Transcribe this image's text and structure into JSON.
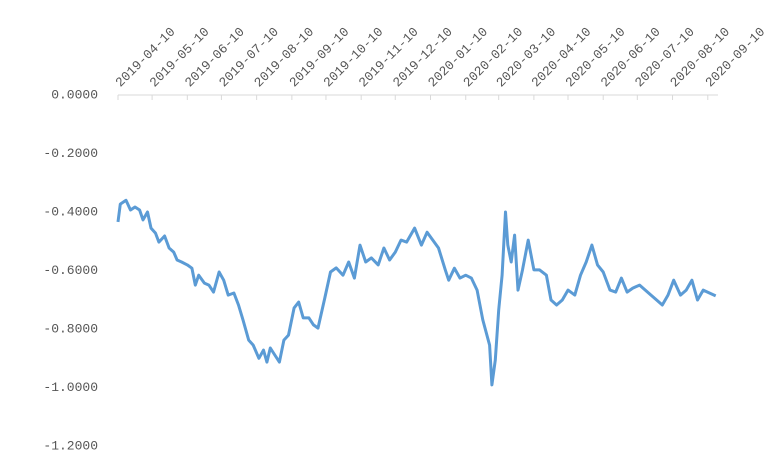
{
  "chart_data": {
    "type": "line",
    "x": [
      "2019-04-10",
      "2019-04-12",
      "2019-04-17",
      "2019-04-21",
      "2019-04-25",
      "2019-04-29",
      "2019-05-02",
      "2019-05-06",
      "2019-05-09",
      "2019-05-13",
      "2019-05-16",
      "2019-05-21",
      "2019-05-25",
      "2019-05-29",
      "2019-06-01",
      "2019-06-05",
      "2019-06-10",
      "2019-06-14",
      "2019-06-17",
      "2019-06-20",
      "2019-06-25",
      "2019-06-29",
      "2019-07-03",
      "2019-07-08",
      "2019-07-12",
      "2019-07-16",
      "2019-07-21",
      "2019-07-25",
      "2019-07-29",
      "2019-08-03",
      "2019-08-07",
      "2019-08-12",
      "2019-08-16",
      "2019-08-19",
      "2019-08-22",
      "2019-08-26",
      "2019-08-30",
      "2019-09-03",
      "2019-09-07",
      "2019-09-12",
      "2019-09-16",
      "2019-09-20",
      "2019-09-25",
      "2019-09-29",
      "2019-10-03",
      "2019-10-09",
      "2019-10-14",
      "2019-10-19",
      "2019-10-25",
      "2019-10-30",
      "2019-11-04",
      "2019-11-09",
      "2019-11-14",
      "2019-11-19",
      "2019-11-25",
      "2019-11-30",
      "2019-12-05",
      "2019-12-10",
      "2019-12-15",
      "2019-12-20",
      "2019-12-27",
      "2020-01-02",
      "2020-01-07",
      "2020-01-12",
      "2020-01-17",
      "2020-01-23",
      "2020-01-26",
      "2020-01-31",
      "2020-02-05",
      "2020-02-10",
      "2020-02-15",
      "2020-02-20",
      "2020-02-25",
      "2020-03-02",
      "2020-03-04",
      "2020-03-07",
      "2020-03-10",
      "2020-03-13",
      "2020-03-16",
      "2020-03-18",
      "2020-03-21",
      "2020-03-24",
      "2020-03-27",
      "2020-03-31",
      "2020-04-05",
      "2020-04-10",
      "2020-04-15",
      "2020-04-21",
      "2020-04-25",
      "2020-04-30",
      "2020-05-05",
      "2020-05-10",
      "2020-05-16",
      "2020-05-21",
      "2020-05-26",
      "2020-05-31",
      "2020-06-05",
      "2020-06-10",
      "2020-06-16",
      "2020-06-21",
      "2020-06-26",
      "2020-07-01",
      "2020-07-06",
      "2020-07-12",
      "2020-07-17",
      "2020-07-22",
      "2020-07-27",
      "2020-08-01",
      "2020-08-06",
      "2020-08-11",
      "2020-08-17",
      "2020-08-22",
      "2020-08-27",
      "2020-09-01",
      "2020-09-06",
      "2020-09-17"
    ],
    "series": [
      {
        "color": "#5b9bd5",
        "values": [
          -0.434,
          -0.373,
          -0.36,
          -0.393,
          -0.383,
          -0.393,
          -0.427,
          -0.4,
          -0.455,
          -0.472,
          -0.503,
          -0.482,
          -0.523,
          -0.537,
          -0.564,
          -0.571,
          -0.581,
          -0.592,
          -0.65,
          -0.616,
          -0.643,
          -0.65,
          -0.674,
          -0.605,
          -0.633,
          -0.684,
          -0.677,
          -0.718,
          -0.769,
          -0.838,
          -0.855,
          -0.9,
          -0.872,
          -0.913,
          -0.865,
          -0.889,
          -0.913,
          -0.838,
          -0.821,
          -0.728,
          -0.708,
          -0.762,
          -0.762,
          -0.786,
          -0.797,
          -0.694,
          -0.605,
          -0.591,
          -0.616,
          -0.571,
          -0.626,
          -0.513,
          -0.571,
          -0.557,
          -0.581,
          -0.523,
          -0.564,
          -0.537,
          -0.496,
          -0.503,
          -0.455,
          -0.513,
          -0.469,
          -0.496,
          -0.523,
          -0.598,
          -0.633,
          -0.592,
          -0.626,
          -0.616,
          -0.626,
          -0.667,
          -0.769,
          -0.855,
          -0.991,
          -0.906,
          -0.735,
          -0.616,
          -0.4,
          -0.513,
          -0.571,
          -0.479,
          -0.667,
          -0.598,
          -0.496,
          -0.598,
          -0.598,
          -0.616,
          -0.701,
          -0.718,
          -0.701,
          -0.667,
          -0.684,
          -0.616,
          -0.571,
          -0.513,
          -0.581,
          -0.605,
          -0.667,
          -0.674,
          -0.626,
          -0.674,
          -0.66,
          -0.65,
          -0.667,
          -0.684,
          -0.701,
          -0.718,
          -0.684,
          -0.633,
          -0.684,
          -0.667,
          -0.633,
          -0.701,
          -0.667,
          -0.687
        ]
      }
    ],
    "xlim": [
      "2019-04-10",
      "2020-09-19"
    ],
    "xticks": [
      "2019-04-10",
      "2019-05-10",
      "2019-06-10",
      "2019-07-10",
      "2019-08-10",
      "2019-09-10",
      "2019-10-10",
      "2019-11-10",
      "2019-12-10",
      "2020-01-10",
      "2020-02-10",
      "2020-03-10",
      "2020-04-10",
      "2020-05-10",
      "2020-06-10",
      "2020-07-10",
      "2020-08-10",
      "2020-09-10"
    ],
    "ylim": [
      -1.2,
      0
    ],
    "yticks": [
      {
        "value": 0,
        "label": "0.0000"
      },
      {
        "value": -0.2,
        "label": "-0.2000"
      },
      {
        "value": -0.4,
        "label": "-0.4000"
      },
      {
        "value": -0.6,
        "label": "-0.6000"
      },
      {
        "value": -0.8,
        "label": "-0.8000"
      },
      {
        "value": -1.0,
        "label": "-1.0000"
      },
      {
        "value": -1.2,
        "label": "-1.2000"
      }
    ],
    "grid": false
  }
}
